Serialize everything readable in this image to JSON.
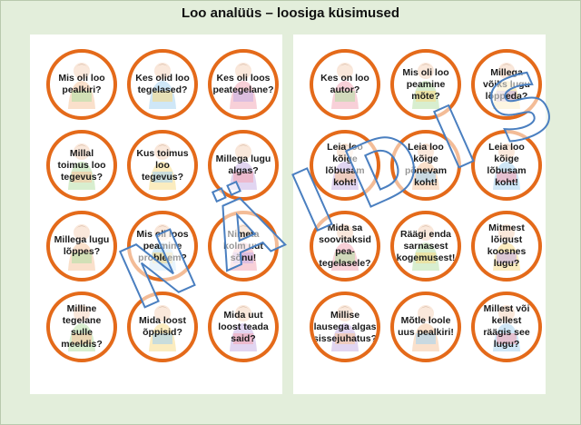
{
  "title": "Loo analüüs – loosiga küsimused",
  "watermark": "NÄIDIS",
  "colors": {
    "page_bg": "#e3eedb",
    "card_border": "#e46a1a",
    "watermark_outline": "#4a7fc0"
  },
  "left_sheet": {
    "cards": [
      {
        "text": "Mis oli loo pealkiri?",
        "icon": "child-reading-books-icon"
      },
      {
        "text": "Kes olid loo tegelased?",
        "icon": "child-reading-icon"
      },
      {
        "text": "Kes oli loos peategelane?",
        "icon": "child-reading-icon"
      },
      {
        "text": "Millal toimus loo tegevus?",
        "icon": "child-reading-icon"
      },
      {
        "text": "Kus toimus loo tegevus?",
        "icon": "child-reading-icon"
      },
      {
        "text": "Millega lugu algas?",
        "icon": "child-reading-icon"
      },
      {
        "text": "Millega lugu lõppes?",
        "icon": "child-reading-icon"
      },
      {
        "text": "Mis oli loos peamine probleem?",
        "icon": "child-reading-icon"
      },
      {
        "text": "Nimeta kolm uut sõnu!",
        "icon": "child-reading-icon"
      },
      {
        "text": "Milline tegelane sulle meeldis?",
        "icon": "child-reading-icon"
      },
      {
        "text": "Mida loost õppisid?",
        "icon": "child-reading-icon"
      },
      {
        "text": "Mida uut loost teada said?",
        "icon": "child-reading-icon"
      }
    ]
  },
  "right_sheet": {
    "cards": [
      {
        "text": "Kes on loo autor?",
        "icon": "child-reading-books-icon"
      },
      {
        "text": "Mis oli loo peamine mõte?",
        "icon": "child-reading-icon"
      },
      {
        "text": "Millega võiks lugu lõppeda?",
        "icon": "child-reading-icon"
      },
      {
        "text": "Leia loo kõige lõbusam koht!",
        "icon": "child-reading-icon"
      },
      {
        "text": "Leia loo kõige põnevam koht!",
        "icon": "child-reading-icon"
      },
      {
        "text": "Leia loo kõige lõbusam koht!",
        "icon": "child-reading-icon"
      },
      {
        "text": "Mida sa soovitaksid pea-tegelasele?",
        "icon": "child-reading-icon"
      },
      {
        "text": "Räägi enda sarnasest kogemusest!",
        "icon": "child-reading-icon"
      },
      {
        "text": "Mitmest lõigust koosnes lugu?",
        "icon": "child-reading-icon"
      },
      {
        "text": "Millise lausega algas sissejuhatus?",
        "icon": "child-reading-icon"
      },
      {
        "text": "Mõtle loole uus pealkiri!",
        "icon": "child-reading-icon"
      },
      {
        "text": "Millest või kellest räägis see lugu?",
        "icon": "child-reading-icon"
      }
    ]
  }
}
